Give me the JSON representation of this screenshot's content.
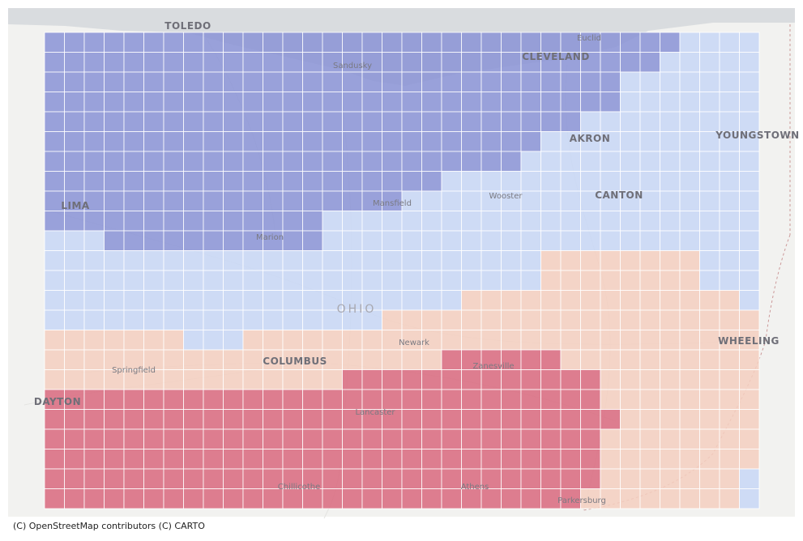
{
  "colors": {
    "water": "#d9dcdf",
    "land": "#f2f2f0",
    "class_1": "#8a93d6",
    "class_2": "#c8d7f6",
    "class_3": "#f5cfbf",
    "class_4": "#d9697e"
  },
  "places": [
    {
      "name": "TOLEDO",
      "kind": "major"
    },
    {
      "name": "Sandusky",
      "kind": "minor"
    },
    {
      "name": "Euclid",
      "kind": "minor"
    },
    {
      "name": "CLEVELAND",
      "kind": "major"
    },
    {
      "name": "AKRON",
      "kind": "major"
    },
    {
      "name": "YOUNGSTOWN",
      "kind": "major"
    },
    {
      "name": "LIMA",
      "kind": "major"
    },
    {
      "name": "Mansfield",
      "kind": "minor"
    },
    {
      "name": "Wooster",
      "kind": "minor"
    },
    {
      "name": "CANTON",
      "kind": "major"
    },
    {
      "name": "Marion",
      "kind": "minor"
    },
    {
      "name": "OHIO",
      "kind": "state"
    },
    {
      "name": "Newark",
      "kind": "minor"
    },
    {
      "name": "WHEELING",
      "kind": "major"
    },
    {
      "name": "Springfield",
      "kind": "minor"
    },
    {
      "name": "COLUMBUS",
      "kind": "major"
    },
    {
      "name": "Zanesville",
      "kind": "minor"
    },
    {
      "name": "DAYTON",
      "kind": "major"
    },
    {
      "name": "Lancaster",
      "kind": "minor"
    },
    {
      "name": "Chillicothe",
      "kind": "minor"
    },
    {
      "name": "Athens",
      "kind": "minor"
    },
    {
      "name": "Parkersburg",
      "kind": "minor"
    }
  ],
  "attribution": "(C) OpenStreetMap contributors (C) CARTO"
}
